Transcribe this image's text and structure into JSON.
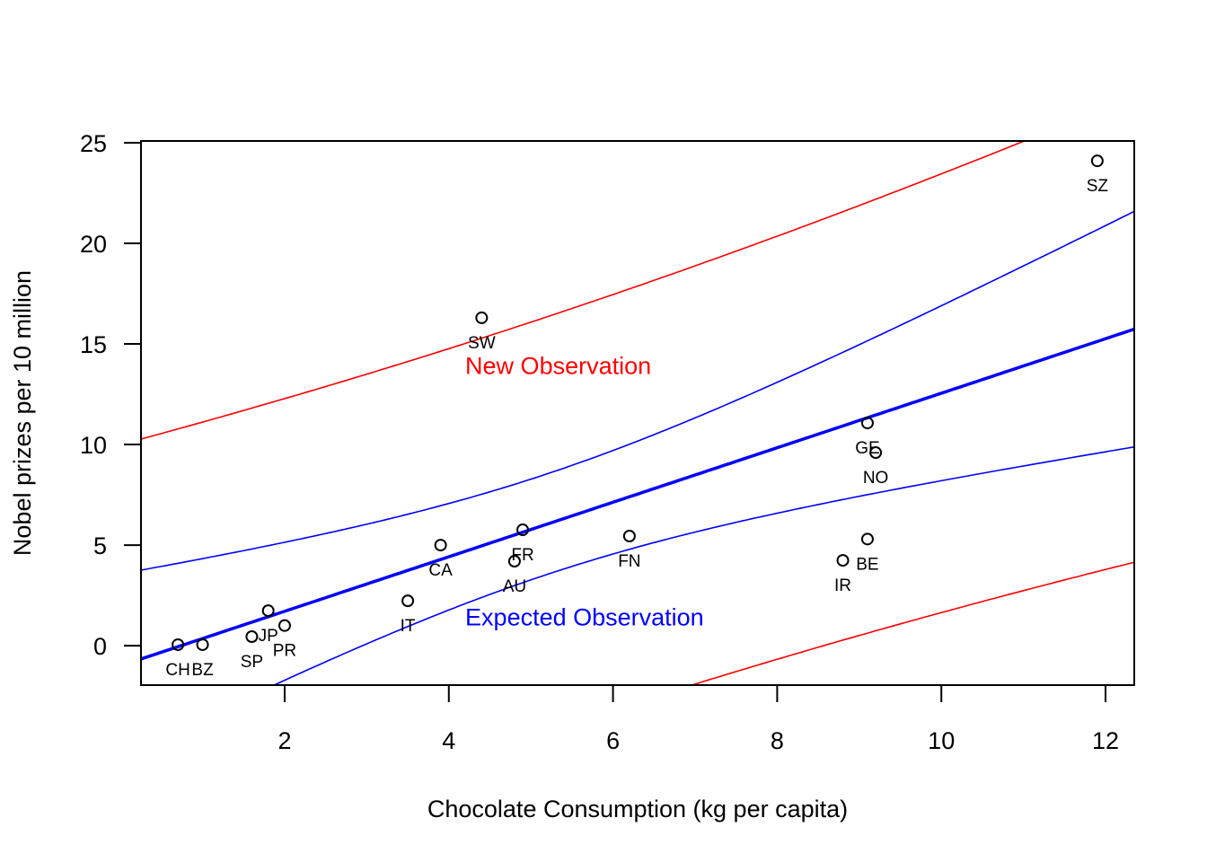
{
  "chart_data": {
    "type": "scatter",
    "title": "",
    "xlabel": "Chocolate Consumption (kg per capita)",
    "ylabel": "Nobel prizes per 10 million",
    "xlim": [
      0.25,
      12.35
    ],
    "ylim": [
      -1.96,
      25.09
    ],
    "xticks": [
      2,
      4,
      6,
      8,
      10,
      12
    ],
    "yticks": [
      0,
      5,
      10,
      15,
      20,
      25
    ],
    "grid": false,
    "points": [
      {
        "label": "CH",
        "x": 0.7,
        "y": 0.05
      },
      {
        "label": "BZ",
        "x": 1.0,
        "y": 0.05
      },
      {
        "label": "SP",
        "x": 1.6,
        "y": 0.45
      },
      {
        "label": "JP",
        "x": 1.8,
        "y": 1.74
      },
      {
        "label": "PR",
        "x": 2.0,
        "y": 1.0
      },
      {
        "label": "IT",
        "x": 3.5,
        "y": 2.23
      },
      {
        "label": "CA",
        "x": 3.9,
        "y": 5.0
      },
      {
        "label": "SW",
        "x": 4.4,
        "y": 16.3
      },
      {
        "label": "AU",
        "x": 4.8,
        "y": 4.2
      },
      {
        "label": "FR",
        "x": 4.9,
        "y": 5.76
      },
      {
        "label": "FN",
        "x": 6.2,
        "y": 5.45
      },
      {
        "label": "IR",
        "x": 8.8,
        "y": 4.24
      },
      {
        "label": "BE",
        "x": 9.1,
        "y": 5.3
      },
      {
        "label": "GE",
        "x": 9.1,
        "y": 11.07
      },
      {
        "label": "NO",
        "x": 9.2,
        "y": 9.6
      },
      {
        "label": "SZ",
        "x": 11.9,
        "y": 24.1
      }
    ],
    "fit_line": {
      "intercept": -1.0,
      "slope": 1.355,
      "color": "#0000ff"
    },
    "bands": {
      "scale": 10.0,
      "x_mean": 5.18,
      "n": 16,
      "sxx": 183.4,
      "confidence_color": "#0000ff",
      "prediction_color": "#ff0000"
    },
    "annotations": [
      {
        "text": "New Observation",
        "x": 4.2,
        "y": 13.9,
        "color": "#ff0000"
      },
      {
        "text": "Expected Observation",
        "x": 4.2,
        "y": 1.4,
        "color": "#0000ff"
      }
    ]
  }
}
